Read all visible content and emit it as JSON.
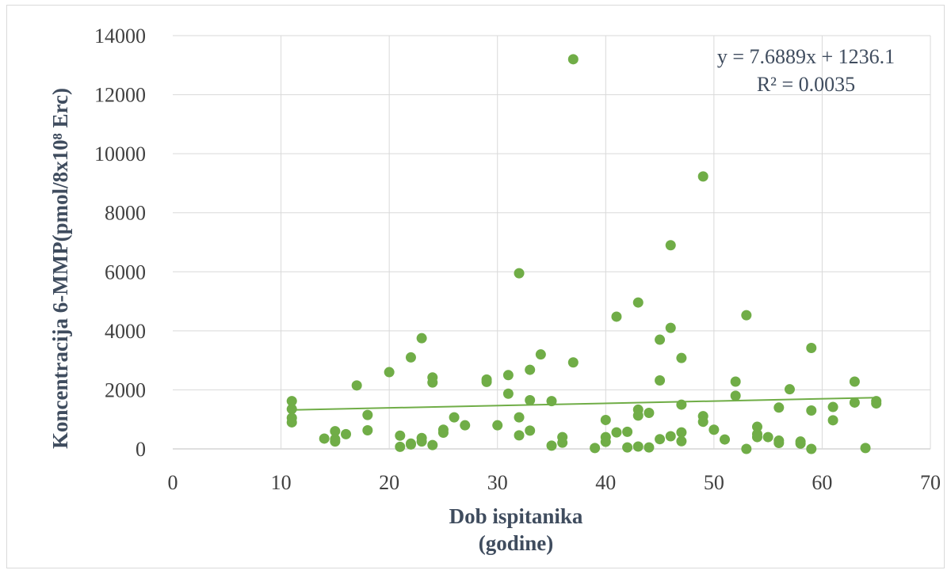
{
  "chart_data": {
    "type": "scatter",
    "xlabel_line1": "Dob ispitanika",
    "xlabel_line2": "(godine)",
    "ylabel": "Koncentracija 6-MMP(pmol/8x10⁸ Erc)",
    "xlim": [
      0,
      70
    ],
    "ylim": [
      0,
      14000
    ],
    "x_ticks": [
      "0",
      "10",
      "20",
      "30",
      "40",
      "50",
      "60",
      "70"
    ],
    "y_ticks": [
      "0",
      "2000",
      "4000",
      "6000",
      "8000",
      "10000",
      "12000",
      "14000"
    ],
    "grid": true,
    "marker_color": "#70ad47",
    "trendline": {
      "slope": 7.6889,
      "intercept": 1236.1,
      "x_range": [
        11,
        65
      ],
      "equation_text": "y = 7.6889x + 1236.1",
      "r2_text": "R² = 0.0035",
      "color": "#70ad47"
    },
    "points": [
      [
        11,
        1620
      ],
      [
        11,
        1350
      ],
      [
        11,
        1050
      ],
      [
        11,
        900
      ],
      [
        14,
        350
      ],
      [
        15,
        600
      ],
      [
        15,
        330
      ],
      [
        15,
        250
      ],
      [
        16,
        500
      ],
      [
        17,
        2150
      ],
      [
        18,
        1150
      ],
      [
        18,
        630
      ],
      [
        20,
        2600
      ],
      [
        21,
        450
      ],
      [
        21,
        70
      ],
      [
        22,
        3100
      ],
      [
        22,
        180
      ],
      [
        22,
        150
      ],
      [
        23,
        3750
      ],
      [
        23,
        370
      ],
      [
        23,
        250
      ],
      [
        24,
        2420
      ],
      [
        24,
        2250
      ],
      [
        24,
        130
      ],
      [
        25,
        650
      ],
      [
        25,
        550
      ],
      [
        26,
        1070
      ],
      [
        27,
        800
      ],
      [
        29,
        2350
      ],
      [
        29,
        2270
      ],
      [
        30,
        800
      ],
      [
        31,
        2500
      ],
      [
        31,
        1870
      ],
      [
        32,
        5950
      ],
      [
        32,
        1070
      ],
      [
        32,
        460
      ],
      [
        33,
        2680
      ],
      [
        33,
        1650
      ],
      [
        33,
        620
      ],
      [
        34,
        3200
      ],
      [
        35,
        1620
      ],
      [
        35,
        110
      ],
      [
        36,
        400
      ],
      [
        36,
        210
      ],
      [
        37,
        13200
      ],
      [
        37,
        2930
      ],
      [
        39,
        30
      ],
      [
        40,
        980
      ],
      [
        40,
        400
      ],
      [
        40,
        240
      ],
      [
        41,
        4480
      ],
      [
        41,
        560
      ],
      [
        42,
        580
      ],
      [
        42,
        50
      ],
      [
        43,
        4960
      ],
      [
        43,
        1330
      ],
      [
        43,
        1130
      ],
      [
        43,
        80
      ],
      [
        44,
        1220
      ],
      [
        44,
        50
      ],
      [
        45,
        3700
      ],
      [
        45,
        2320
      ],
      [
        45,
        330
      ],
      [
        46,
        6900
      ],
      [
        46,
        4100
      ],
      [
        46,
        430
      ],
      [
        47,
        3080
      ],
      [
        47,
        1500
      ],
      [
        47,
        560
      ],
      [
        47,
        260
      ],
      [
        49,
        9230
      ],
      [
        49,
        1110
      ],
      [
        49,
        920
      ],
      [
        50,
        650
      ],
      [
        51,
        320
      ],
      [
        52,
        2280
      ],
      [
        52,
        1800
      ],
      [
        53,
        4530
      ],
      [
        53,
        0
      ],
      [
        54,
        750
      ],
      [
        54,
        500
      ],
      [
        54,
        400
      ],
      [
        55,
        400
      ],
      [
        56,
        1400
      ],
      [
        56,
        280
      ],
      [
        56,
        200
      ],
      [
        57,
        2020
      ],
      [
        58,
        250
      ],
      [
        58,
        180
      ],
      [
        59,
        3420
      ],
      [
        59,
        1300
      ],
      [
        59,
        0
      ],
      [
        61,
        1420
      ],
      [
        61,
        970
      ],
      [
        63,
        2280
      ],
      [
        63,
        1570
      ],
      [
        64,
        30
      ],
      [
        65,
        1620
      ],
      [
        65,
        1540
      ]
    ]
  }
}
